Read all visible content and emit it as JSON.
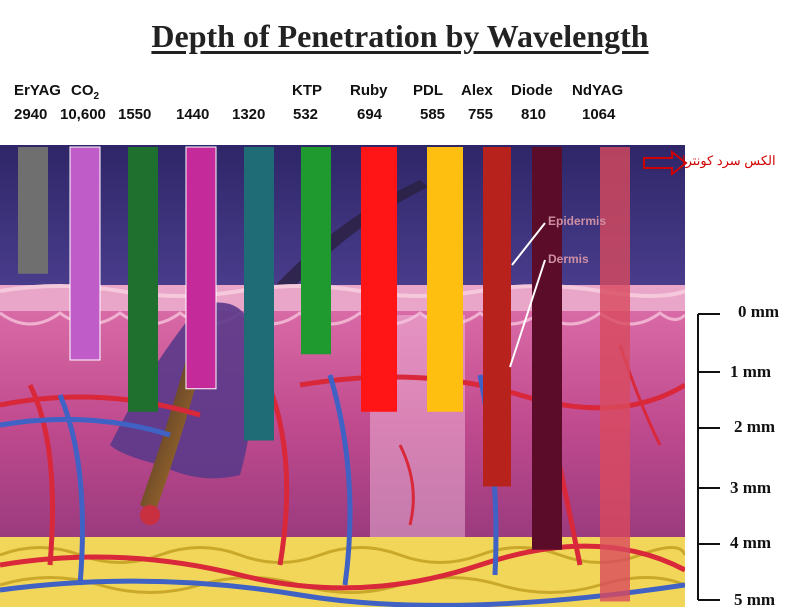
{
  "title": "Depth of Penetration by Wavelength",
  "lasers": [
    {
      "name": "ErYAG",
      "wavelength": "2940",
      "color": "#6f6f6f",
      "depth_mm": -0.7
    },
    {
      "name": "CO",
      "name_sub": "2",
      "wavelength": "10,600",
      "color": "#c05cc8",
      "depth_mm": 0.8
    },
    {
      "name": "",
      "wavelength": "1550",
      "color": "#1f6f2f",
      "depth_mm": 1.7
    },
    {
      "name": "",
      "wavelength": "1440",
      "color": "#c42a9a",
      "depth_mm": 1.3
    },
    {
      "name": "",
      "wavelength": "1320",
      "color": "#1f6c77",
      "depth_mm": 2.2
    },
    {
      "name": "KTP",
      "wavelength": "532",
      "color": "#1f9a2e",
      "depth_mm": 0.7
    },
    {
      "name": "Ruby",
      "wavelength": "694",
      "color": "#ff1515",
      "depth_mm": 1.7
    },
    {
      "name": "PDL",
      "wavelength": "585",
      "color": "#ffbf10",
      "depth_mm": 1.7
    },
    {
      "name": "Alex",
      "wavelength": "755",
      "color": "#b8221c",
      "depth_mm": 3.0
    },
    {
      "name": "Diode",
      "wavelength": "810",
      "color": "#5a0c28",
      "depth_mm": 4.1
    },
    {
      "name": "NdYAG",
      "wavelength": "1064",
      "color": "#d84a5e",
      "depth_mm": 5.0
    }
  ],
  "layers": {
    "epidermis": "Epidermis",
    "dermis": "Dermis"
  },
  "annotation": "الكس سرد كونترا",
  "scale_ticks": [
    "0 mm",
    "1 mm",
    "2 mm",
    "3 mm",
    "4 mm",
    "5 mm"
  ],
  "colors": {
    "background_top": "#3a2f78",
    "dermis": "#c85a9a",
    "fat": "#f0d24a",
    "vessel_red": "#d42a3a",
    "vessel_blue": "#4a70c8"
  }
}
